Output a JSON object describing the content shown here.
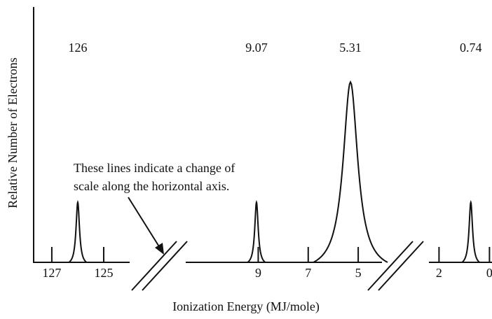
{
  "chart_data": {
    "type": "spectrum",
    "xlabel": "Ionization Energy (MJ/mole)",
    "ylabel": "Relative Number of Electrons",
    "annotation": [
      "These lines indicate a change of",
      "scale along the horizontal axis."
    ],
    "ylim": [
      0,
      4.25
    ],
    "color": "#111111",
    "segments": [
      {
        "xlim": [
          127.7,
          124
        ],
        "xticks": [
          127,
          125
        ],
        "x": [
          126
        ],
        "values": [
          1
        ]
      },
      {
        "xlim": [
          11.9,
          4.05
        ],
        "xticks": [
          9,
          7,
          5
        ],
        "x": [
          9.07,
          5.31
        ],
        "values": [
          1,
          3
        ]
      },
      {
        "xlim": [
          2.4,
          -0.1
        ],
        "xticks": [
          2,
          0
        ],
        "x": [
          0.74
        ],
        "values": [
          1
        ]
      }
    ]
  }
}
